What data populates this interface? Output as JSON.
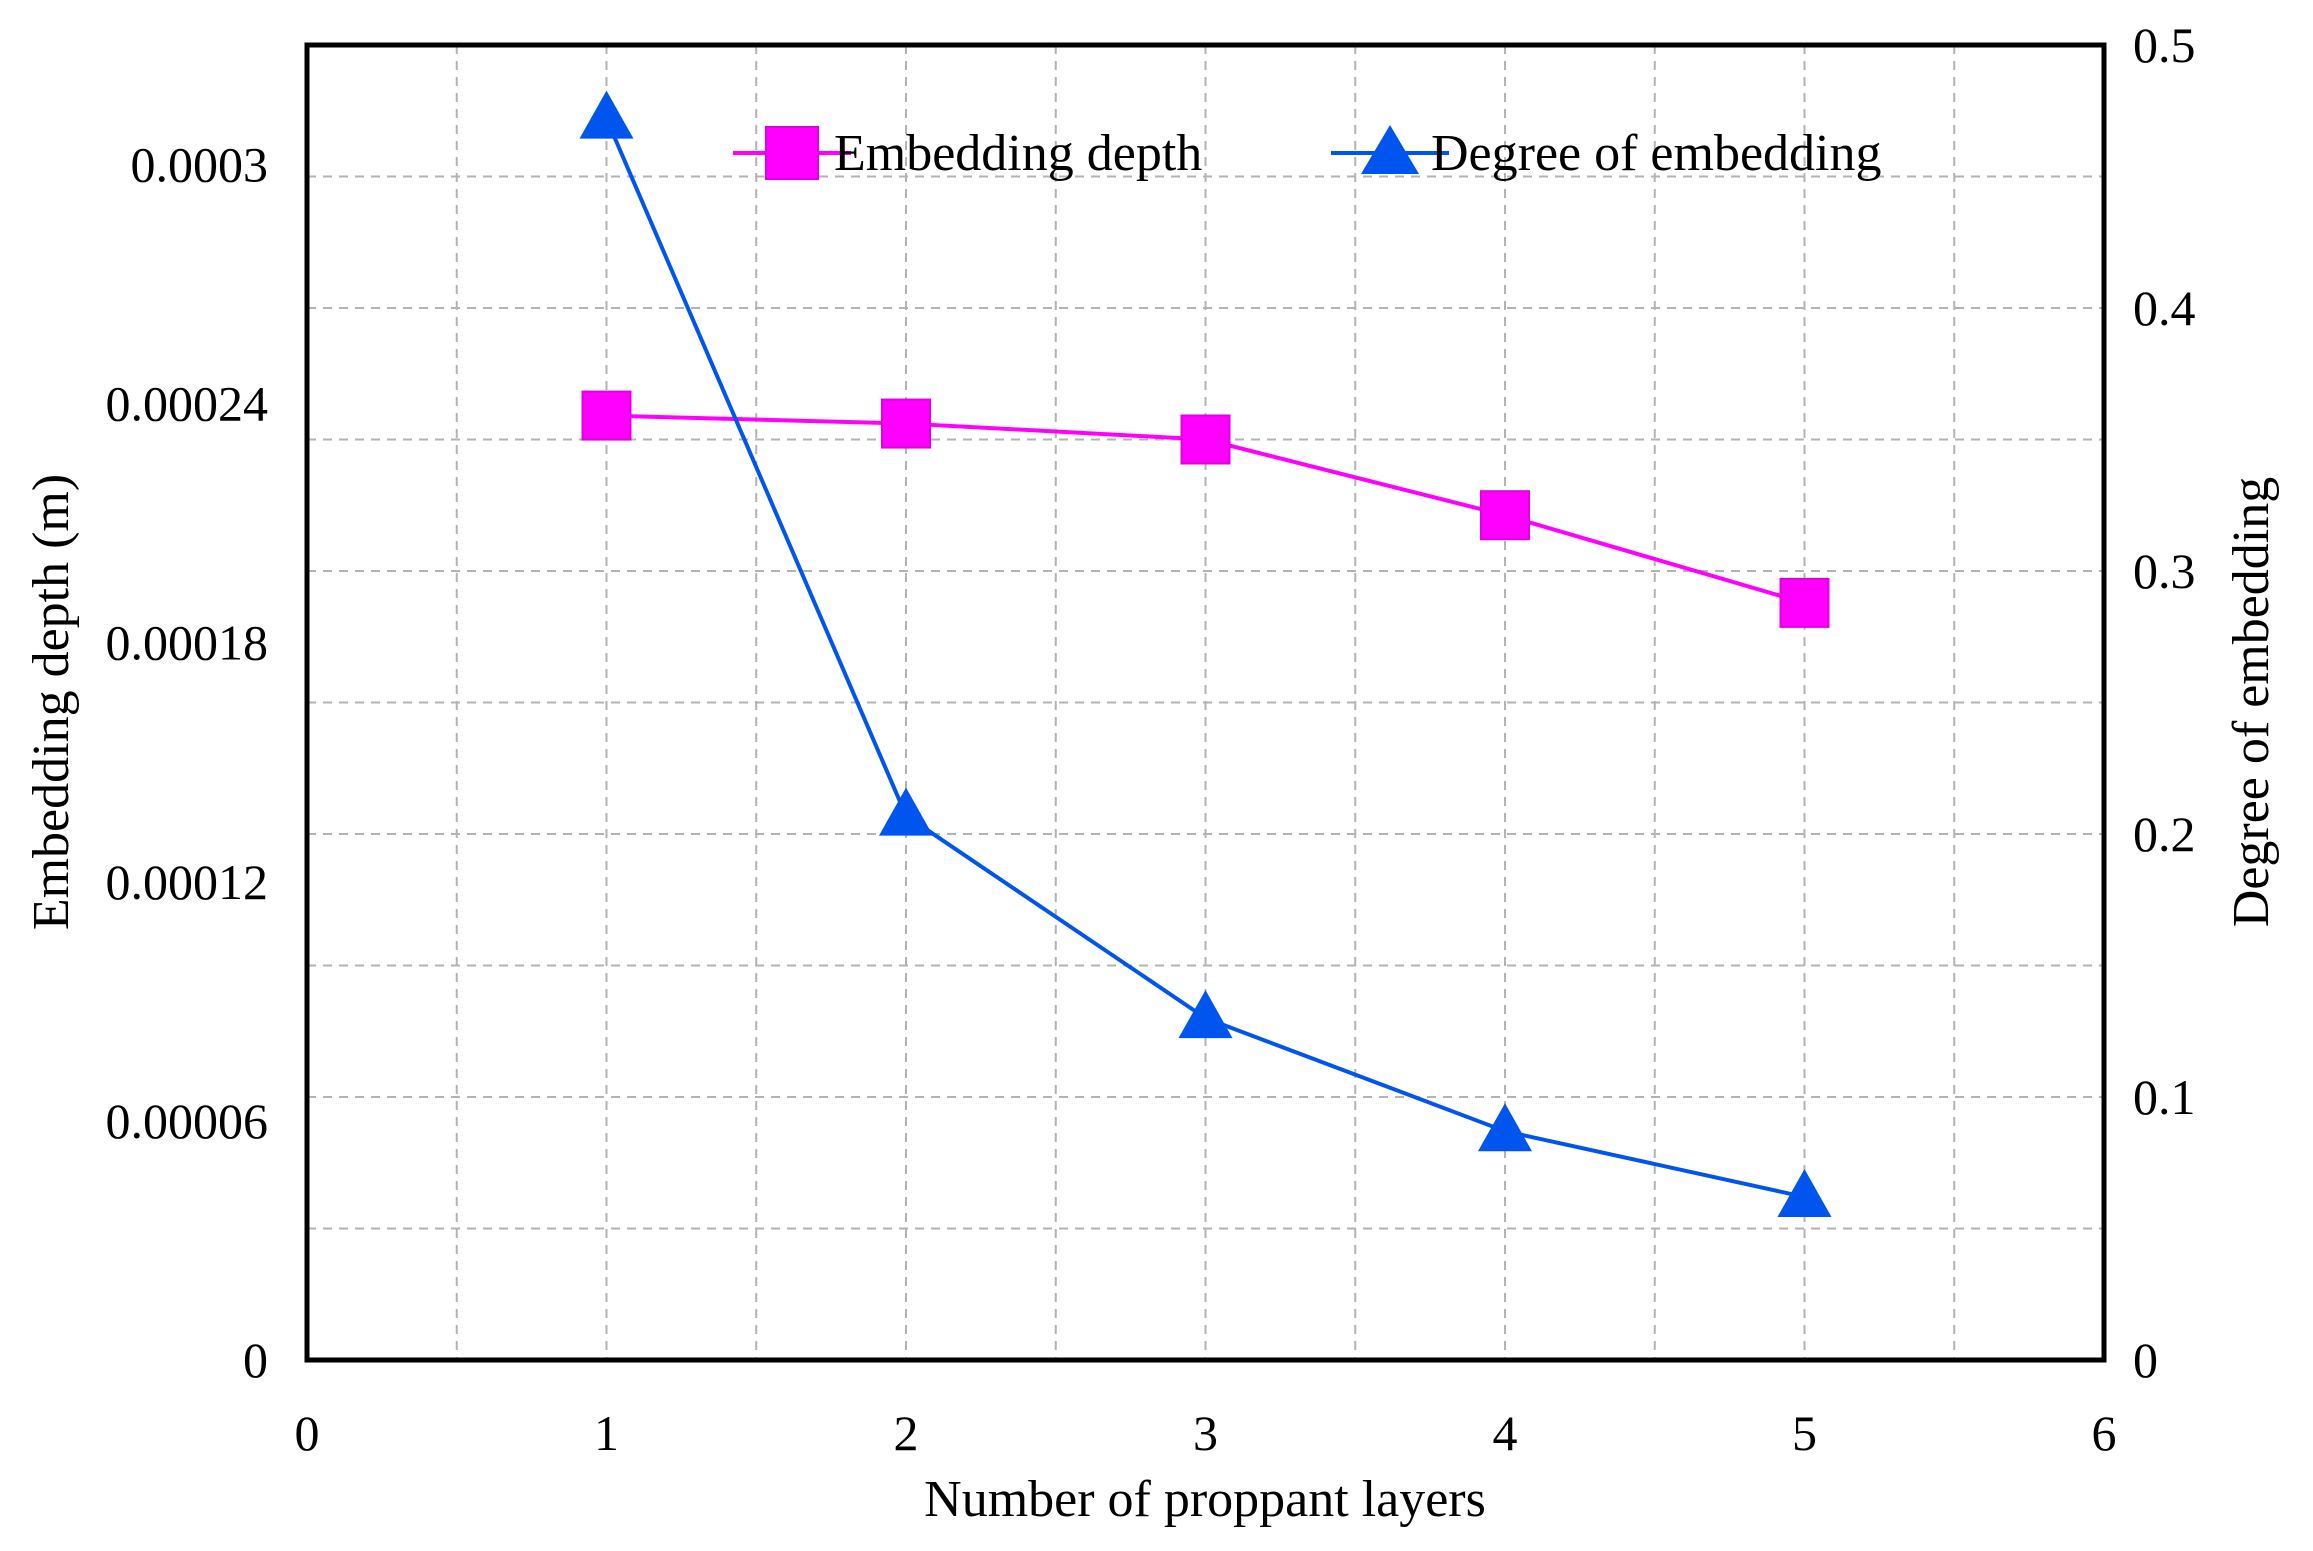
{
  "chart_data": {
    "type": "line",
    "x": [
      1,
      2,
      3,
      4,
      5
    ],
    "xlabel": "Number of proppant layers",
    "xlim": [
      0,
      6
    ],
    "xticks": [
      "0",
      "1",
      "2",
      "3",
      "4",
      "5",
      "6"
    ],
    "ylabel_left": "Embedding depth (m)",
    "ylim_left": [
      0,
      0.00033
    ],
    "yticks_left": [
      "0",
      "0.00006",
      "0.00012",
      "0.00018",
      "0.00024",
      "0.0003"
    ],
    "ylabel_right": "Degree of embedding",
    "ylim_right": [
      0,
      0.5
    ],
    "yticks_right": [
      "0",
      "0.1",
      "0.2",
      "0.3",
      "0.4",
      "0.5"
    ],
    "grid": true,
    "legend_position": "top-right",
    "series": [
      {
        "name": "Embedding depth",
        "axis": "left",
        "marker": "square",
        "color": "#ff00ff",
        "values": [
          0.000237,
          0.000235,
          0.000231,
          0.000212,
          0.00019
        ]
      },
      {
        "name": "Degree of embedding",
        "axis": "right",
        "marker": "triangle",
        "color": "#0055ee",
        "values": [
          0.472,
          0.207,
          0.13,
          0.087,
          0.062
        ]
      }
    ]
  }
}
